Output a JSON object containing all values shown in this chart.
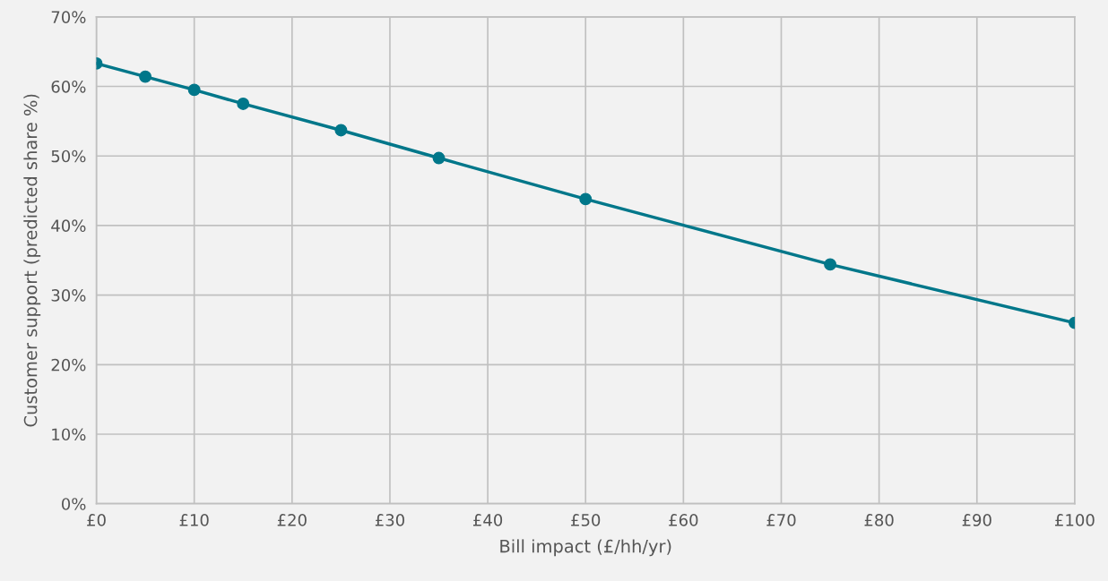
{
  "chart_data": {
    "type": "line",
    "xlabel": "Bill impact (£/hh/yr)",
    "ylabel": "Customer support (predicted share %)",
    "x": [
      0,
      5,
      10,
      15,
      25,
      35,
      50,
      75,
      100
    ],
    "series": [
      {
        "color": "#00778a",
        "values": [
          63.3,
          61.4,
          59.5,
          57.5,
          53.7,
          49.7,
          43.8,
          34.4,
          26.0
        ]
      }
    ],
    "xlim": [
      0,
      100
    ],
    "xticks": [
      {
        "value": 0,
        "label": "£0"
      },
      {
        "value": 10,
        "label": "£10"
      },
      {
        "value": 20,
        "label": "£20"
      },
      {
        "value": 30,
        "label": "£30"
      },
      {
        "value": 40,
        "label": "£40"
      },
      {
        "value": 50,
        "label": "£50"
      },
      {
        "value": 60,
        "label": "£60"
      },
      {
        "value": 70,
        "label": "£70"
      },
      {
        "value": 80,
        "label": "£80"
      },
      {
        "value": 90,
        "label": "£90"
      },
      {
        "value": 100,
        "label": "£100"
      }
    ],
    "ylim": [
      0,
      70
    ],
    "yticks": [
      {
        "value": 0,
        "label": "0%"
      },
      {
        "value": 10,
        "label": "10%"
      },
      {
        "value": 20,
        "label": "20%"
      },
      {
        "value": 30,
        "label": "30%"
      },
      {
        "value": 40,
        "label": "40%"
      },
      {
        "value": 50,
        "label": "50%"
      },
      {
        "value": 60,
        "label": "60%"
      },
      {
        "value": 70,
        "label": "70%"
      }
    ],
    "grid": true,
    "marker": "circle",
    "line_style": "solid"
  }
}
